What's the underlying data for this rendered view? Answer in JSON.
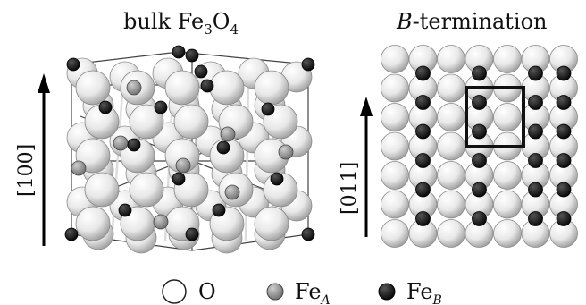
{
  "panels": {
    "left": {
      "title_prefix": "bulk Fe",
      "title_sub1": "3",
      "title_mid": "O",
      "title_sub2": "4",
      "axis_label": "[100]"
    },
    "right": {
      "title_italic": "B",
      "title_rest": "-termination",
      "axis_label": "[011]"
    }
  },
  "legend": {
    "items": [
      {
        "label": "O",
        "sub": "",
        "color": "#ffffff"
      },
      {
        "label": "Fe",
        "sub": "A",
        "color": "#9a9a9a"
      },
      {
        "label": "Fe",
        "sub": "B",
        "color": "#111111"
      }
    ]
  },
  "colors": {
    "oxygen": "#e6e6e6",
    "fe_a": "#8f8f8f",
    "fe_b": "#1a1a1a",
    "outline": "#222222"
  }
}
